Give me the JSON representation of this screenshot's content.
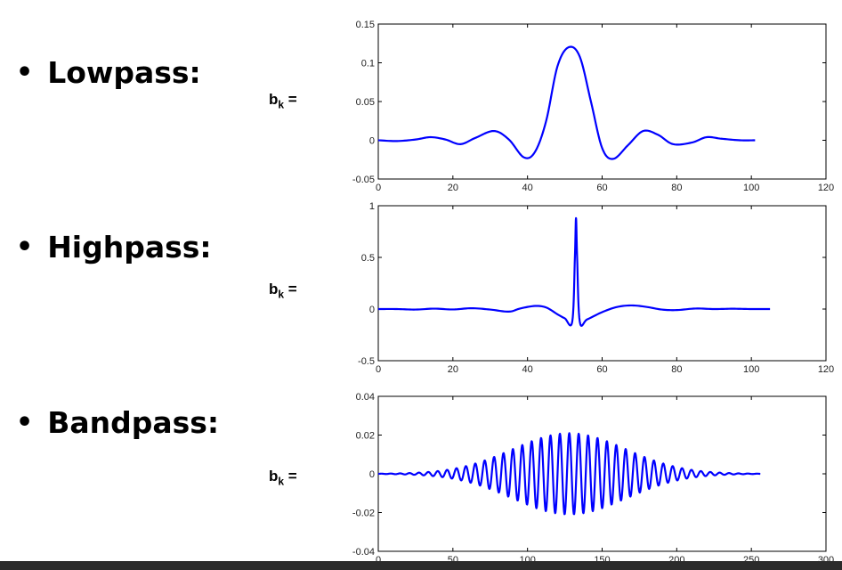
{
  "bullets": [
    {
      "dot": "•",
      "label": "Lowpass:"
    },
    {
      "dot": "•",
      "label": "Highpass:"
    },
    {
      "dot": "•",
      "label": "Bandpass:"
    }
  ],
  "bk": {
    "symbol": "b",
    "sub": "k",
    "eq": " ="
  },
  "chart_data": [
    {
      "type": "line",
      "name": "lowpass",
      "xlim": [
        0,
        120
      ],
      "ylim": [
        -0.05,
        0.15
      ],
      "xticks": [
        0,
        20,
        40,
        60,
        80,
        100,
        120
      ],
      "yticks": [
        -0.05,
        0,
        0.05,
        0.1,
        0.15
      ],
      "xtick_labels": [
        "0",
        "20",
        "40",
        "60",
        "80",
        "100",
        "120"
      ],
      "ytick_labels": [
        "-0.05",
        "0",
        "0.05",
        "0.1",
        "0.15"
      ],
      "color": "#0000ff",
      "x": [
        0,
        5,
        10,
        14,
        18,
        22,
        26,
        31,
        35,
        39,
        42,
        45,
        48,
        51,
        54,
        57,
        60,
        63,
        67,
        71,
        75,
        79,
        84,
        88,
        92,
        97,
        101
      ],
      "y": [
        0,
        -0.001,
        0.001,
        0.004,
        0.001,
        -0.005,
        0.003,
        0.012,
        0.001,
        -0.022,
        -0.015,
        0.025,
        0.095,
        0.12,
        0.108,
        0.05,
        -0.01,
        -0.024,
        -0.006,
        0.012,
        0.007,
        -0.005,
        -0.003,
        0.004,
        0.002,
        0,
        0
      ]
    },
    {
      "type": "line",
      "name": "highpass",
      "xlim": [
        0,
        120
      ],
      "ylim": [
        -0.5,
        1
      ],
      "xticks": [
        0,
        20,
        40,
        60,
        80,
        100,
        120
      ],
      "yticks": [
        -0.5,
        0,
        0.5,
        1
      ],
      "xtick_labels": [
        "0",
        "20",
        "40",
        "60",
        "80",
        "100",
        "120"
      ],
      "ytick_labels": [
        "-0.5",
        "0",
        "0.5",
        "1"
      ],
      "color": "#0000ff",
      "x": [
        0,
        5,
        10,
        15,
        20,
        25,
        30,
        35,
        38,
        42,
        45,
        48,
        50,
        52,
        52.7,
        53,
        53.3,
        54,
        56,
        60,
        64,
        68,
        72,
        76,
        80,
        85,
        90,
        95,
        100,
        105
      ],
      "y": [
        0,
        0,
        -0.005,
        0.004,
        -0.004,
        0.008,
        -0.005,
        -0.025,
        0.005,
        0.03,
        0.015,
        -0.05,
        -0.09,
        -0.12,
        0.5,
        0.88,
        0.5,
        -0.12,
        -0.1,
        -0.03,
        0.02,
        0.035,
        0.02,
        -0.005,
        -0.01,
        0.005,
        0,
        0.003,
        0,
        0
      ]
    },
    {
      "type": "line",
      "name": "bandpass",
      "xlim": [
        0,
        300
      ],
      "ylim": [
        -0.04,
        0.04
      ],
      "xticks": [
        0,
        50,
        100,
        150,
        200,
        250,
        300
      ],
      "yticks": [
        -0.04,
        -0.02,
        0,
        0.02,
        0.04
      ],
      "xtick_labels": [
        "0",
        "50",
        "100",
        "150",
        "200",
        "250",
        "300"
      ],
      "ytick_labels": [
        "-0.04",
        "-0.02",
        "0",
        "0.02",
        "0.04"
      ],
      "color": "#0000ff",
      "signal": {
        "x_start": 0,
        "x_end": 256,
        "center": 128,
        "sigma": 38,
        "amplitude": 0.021,
        "period": 6.3,
        "samples": 1024
      }
    }
  ]
}
